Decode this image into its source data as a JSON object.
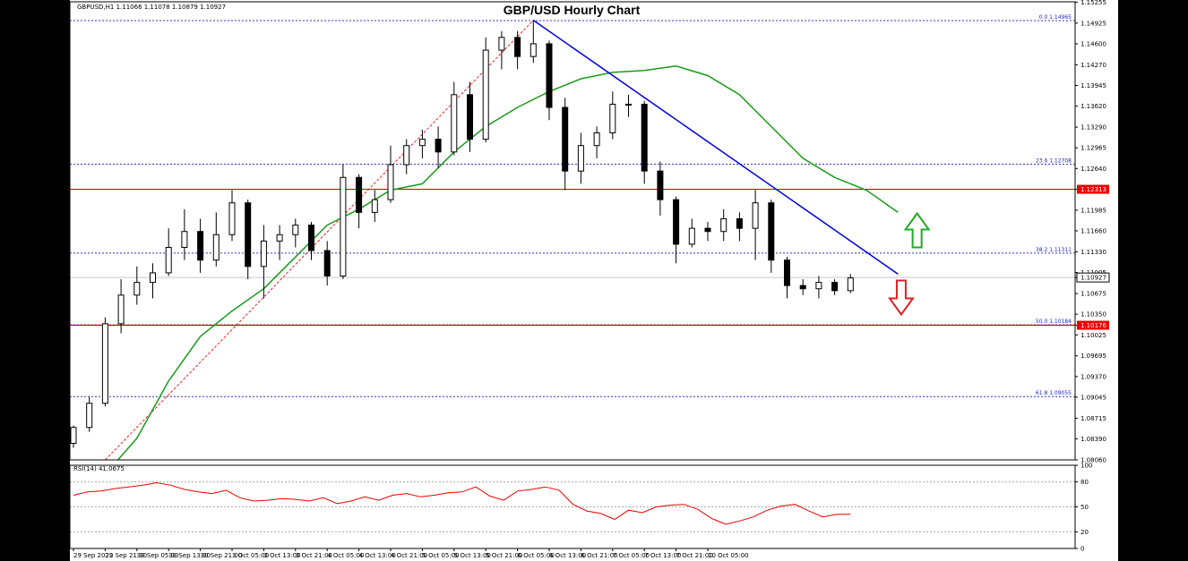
{
  "header": {
    "symbol_info": "GBPUSD,H1  1.11066 1.11078 1.10879 1.10927",
    "title": "GBP/USD Hourly Chart"
  },
  "rsi_label": "RSI(14) 41.0675",
  "colors": {
    "background": "#ffffff",
    "candle": "#000000",
    "ma": "#1a9c1a",
    "trendline": "#0000dd",
    "support_resistance": "#ee0000",
    "fib": "#3333cc",
    "rsi": "#ee0000",
    "arrow_up": "#22aa22",
    "arrow_down": "#dd2222"
  },
  "chart_data": [
    {
      "type": "candlestick",
      "title": "GBP/USD Hourly Chart",
      "y_ticks": [
        "1.15255",
        "1.14925",
        "1.14600",
        "1.14270",
        "1.13945",
        "1.13620",
        "1.13290",
        "1.12965",
        "1.12640",
        "1.12313",
        "1.11985",
        "1.11660",
        "1.11330",
        "1.11005",
        "1.10927",
        "1.10675",
        "1.10350",
        "1.10176",
        "1.10025",
        "1.09695",
        "1.09370",
        "1.09045",
        "1.08715",
        "1.08390",
        "1.08060"
      ],
      "ylim": [
        1.0806,
        1.1526
      ],
      "x_ticks": [
        "29 Sep 2022",
        "29 Sep 21:00",
        "30 Sep 05:00",
        "30 Sep 13:00",
        "30 Sep 21:00",
        "3 Oct 05:00",
        "3 Oct 13:00",
        "3 Oct 21:00",
        "4 Oct 05:00",
        "4 Oct 13:00",
        "4 Oct 21:00",
        "5 Oct 05:00",
        "5 Oct 13:00",
        "5 Oct 21:00",
        "6 Oct 05:00",
        "6 Oct 13:00",
        "6 Oct 21:00",
        "7 Oct 05:00",
        "7 Oct 13:00",
        "7 Oct 21:00",
        "10 Oct 05:00"
      ],
      "current_price": 1.10927,
      "levels": [
        {
          "label": "1.12313",
          "value": 1.12313,
          "style": "resistance"
        },
        {
          "label": "1.10176",
          "value": 1.10176,
          "style": "support"
        }
      ],
      "fibonacci": [
        {
          "label": "0.0  1.14965",
          "value": 1.14965
        },
        {
          "label": "23.6  1.12708",
          "value": 1.12708
        },
        {
          "label": "38.2  1.11311",
          "value": 1.11311
        },
        {
          "label": "50.0  1.10184",
          "value": 1.10184
        },
        {
          "label": "61.8  1.09055",
          "value": 1.09055
        }
      ],
      "trendline": {
        "start": [
          14.5,
          1.1497
        ],
        "end": [
          26,
          1.1098
        ]
      },
      "fib_swing": {
        "start": [
          1,
          1.0806
        ],
        "end": [
          14.5,
          1.1497
        ]
      },
      "ma_path": [
        [
          1.4,
          1.0806
        ],
        [
          2,
          1.084
        ],
        [
          3,
          1.093
        ],
        [
          4,
          1.1
        ],
        [
          5,
          1.104
        ],
        [
          6,
          1.1075
        ],
        [
          7,
          1.1125
        ],
        [
          8,
          1.1175
        ],
        [
          9,
          1.12
        ],
        [
          10,
          1.123
        ],
        [
          11,
          1.124
        ],
        [
          12,
          1.129
        ],
        [
          13,
          1.133
        ],
        [
          14,
          1.136
        ],
        [
          15,
          1.1385
        ],
        [
          16,
          1.1405
        ],
        [
          17,
          1.1415
        ],
        [
          18,
          1.1418
        ],
        [
          19,
          1.1425
        ],
        [
          20,
          1.141
        ],
        [
          21,
          1.138
        ],
        [
          22,
          1.133
        ],
        [
          23,
          1.128
        ],
        [
          24,
          1.125
        ],
        [
          25,
          1.123
        ],
        [
          26,
          1.1195
        ]
      ],
      "candles": [
        [
          0,
          1.0832,
          1.086,
          1.0825,
          1.0857
        ],
        [
          0.5,
          1.0857,
          1.0905,
          1.085,
          1.0895
        ],
        [
          1,
          1.0895,
          1.103,
          1.089,
          1.102
        ],
        [
          1.5,
          1.102,
          1.109,
          1.1005,
          1.1065
        ],
        [
          2,
          1.1065,
          1.111,
          1.105,
          1.1085
        ],
        [
          2.5,
          1.1085,
          1.1115,
          1.106,
          1.11
        ],
        [
          3,
          1.11,
          1.117,
          1.1095,
          1.114
        ],
        [
          3.5,
          1.114,
          1.12,
          1.112,
          1.1165
        ],
        [
          4,
          1.1165,
          1.1185,
          1.11,
          1.112
        ],
        [
          4.5,
          1.112,
          1.1195,
          1.111,
          1.116
        ],
        [
          5,
          1.116,
          1.123,
          1.115,
          1.121
        ],
        [
          5.5,
          1.121,
          1.1215,
          1.109,
          1.111
        ],
        [
          6,
          1.111,
          1.1175,
          1.106,
          1.115
        ],
        [
          6.5,
          1.115,
          1.1175,
          1.112,
          1.116
        ],
        [
          7,
          1.116,
          1.1185,
          1.114,
          1.1175
        ],
        [
          7.5,
          1.1175,
          1.118,
          1.112,
          1.1135
        ],
        [
          8,
          1.1135,
          1.115,
          1.108,
          1.1095
        ],
        [
          8.5,
          1.1095,
          1.127,
          1.109,
          1.125
        ],
        [
          9,
          1.125,
          1.1255,
          1.117,
          1.1195
        ],
        [
          9.5,
          1.1195,
          1.123,
          1.118,
          1.1215
        ],
        [
          10,
          1.1215,
          1.13,
          1.121,
          1.127
        ],
        [
          10.5,
          1.127,
          1.131,
          1.1255,
          1.13
        ],
        [
          11,
          1.13,
          1.1325,
          1.128,
          1.131
        ],
        [
          11.5,
          1.131,
          1.133,
          1.1265,
          1.129
        ],
        [
          12,
          1.129,
          1.14,
          1.1285,
          1.138
        ],
        [
          12.5,
          1.138,
          1.14,
          1.129,
          1.131
        ],
        [
          13,
          1.131,
          1.147,
          1.1305,
          1.145
        ],
        [
          13.5,
          1.145,
          1.148,
          1.142,
          1.147
        ],
        [
          14,
          1.147,
          1.148,
          1.142,
          1.144
        ],
        [
          14.5,
          1.144,
          1.1497,
          1.143,
          1.146
        ],
        [
          15,
          1.146,
          1.1465,
          1.134,
          1.136
        ],
        [
          15.5,
          1.136,
          1.1375,
          1.123,
          1.126
        ],
        [
          16,
          1.126,
          1.132,
          1.124,
          1.13
        ],
        [
          16.5,
          1.13,
          1.133,
          1.128,
          1.132
        ],
        [
          17,
          1.132,
          1.1385,
          1.131,
          1.1365
        ],
        [
          17.5,
          1.1365,
          1.138,
          1.1345,
          1.1365
        ],
        [
          18,
          1.1365,
          1.137,
          1.124,
          1.126
        ],
        [
          18.5,
          1.126,
          1.1275,
          1.119,
          1.1215
        ],
        [
          19,
          1.1215,
          1.122,
          1.1115,
          1.1145
        ],
        [
          19.5,
          1.1145,
          1.1185,
          1.114,
          1.117
        ],
        [
          20,
          1.117,
          1.118,
          1.115,
          1.1165
        ],
        [
          20.5,
          1.1165,
          1.12,
          1.115,
          1.1185
        ],
        [
          21,
          1.1185,
          1.1195,
          1.115,
          1.117
        ],
        [
          21.5,
          1.117,
          1.123,
          1.112,
          1.121
        ],
        [
          22,
          1.121,
          1.1215,
          1.11,
          1.112
        ],
        [
          22.5,
          1.112,
          1.1125,
          1.106,
          1.108
        ],
        [
          23,
          1.108,
          1.109,
          1.1065,
          1.1075
        ],
        [
          23.5,
          1.1075,
          1.1095,
          1.106,
          1.1085
        ],
        [
          24,
          1.1085,
          1.109,
          1.1065,
          1.1072
        ],
        [
          24.5,
          1.1072,
          1.1098,
          1.1068,
          1.1092
        ]
      ]
    },
    {
      "type": "line",
      "title": "RSI(14) 41.0675",
      "y_ticks": [
        "100",
        "80",
        "50",
        "20",
        "0"
      ],
      "ylim": [
        0,
        100
      ],
      "values": [
        64,
        68,
        69,
        72,
        74,
        76,
        79,
        76,
        71,
        68,
        66,
        70,
        61,
        57,
        58,
        60,
        59,
        57,
        61,
        54,
        57,
        62,
        58,
        64,
        66,
        62,
        64,
        67,
        68,
        74,
        63,
        58,
        69,
        71,
        74,
        70,
        53,
        45,
        42,
        35,
        46,
        43,
        50,
        52,
        53,
        47,
        36,
        29,
        33,
        38,
        46,
        51,
        53,
        45,
        38,
        41,
        41.07
      ]
    }
  ]
}
